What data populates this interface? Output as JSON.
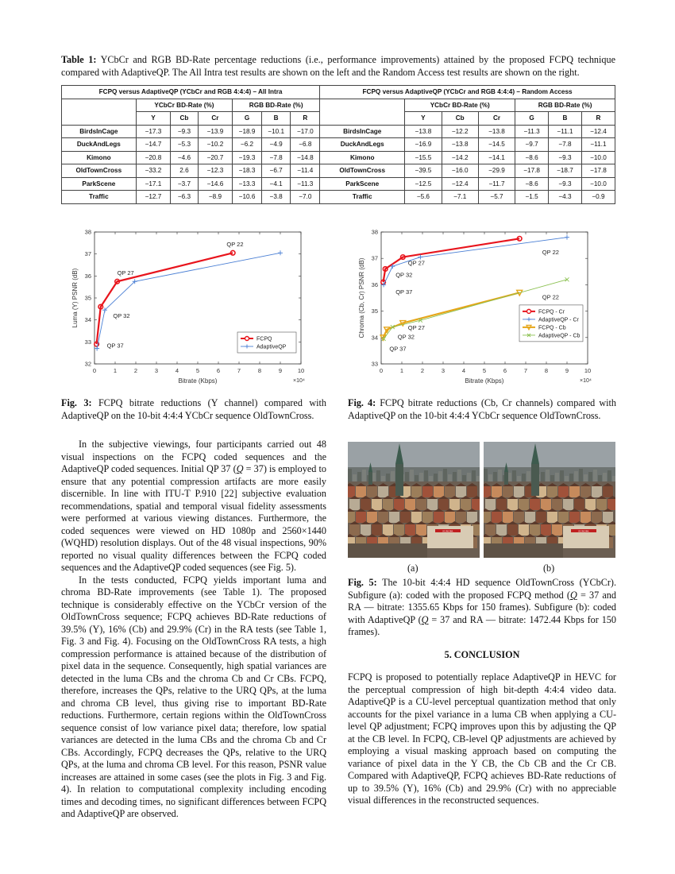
{
  "table": {
    "caption_label": "Table 1:",
    "caption_text": "YCbCr and RGB BD-Rate percentage reductions (i.e., performance improvements) attained by the proposed FCPQ technique compared with AdaptiveQP. The All Intra test results are shown on the left and the Random Access test results are shown on the right.",
    "left_header": "FCPQ versus AdaptiveQP (YCbCr and RGB 4:4:4) – All Intra",
    "right_header": "FCPQ versus AdaptiveQP (YCbCr and RGB 4:4:4) – Random Access",
    "group_ycbcr": "YCbCr BD-Rate (%)",
    "group_rgb": "RGB BD-Rate (%)",
    "columns": [
      "Y",
      "Cb",
      "Cr",
      "G",
      "B",
      "R"
    ],
    "rows": [
      {
        "seq": "BirdsInCage",
        "ai": [
          "−17.3",
          "−9.3",
          "−13.9",
          "−18.9",
          "−10.1",
          "−17.0"
        ],
        "ra": [
          "−13.8",
          "−12.2",
          "−13.8",
          "−11.3",
          "−11.1",
          "−12.4"
        ]
      },
      {
        "seq": "DuckAndLegs",
        "ai": [
          "−14.7",
          "−5.3",
          "−10.2",
          "−6.2",
          "−4.9",
          "−6.8"
        ],
        "ra": [
          "−16.9",
          "−13.8",
          "−14.5",
          "−9.7",
          "−7.8",
          "−11.1"
        ]
      },
      {
        "seq": "Kimono",
        "ai": [
          "−20.8",
          "−4.6",
          "−20.7",
          "−19.3",
          "−7.8",
          "−14.8"
        ],
        "ra": [
          "−15.5",
          "−14.2",
          "−14.1",
          "−8.6",
          "−9.3",
          "−10.0"
        ]
      },
      {
        "seq": "OldTownCross",
        "ai": [
          "−33.2",
          "2.6",
          "−12.3",
          "−18.3",
          "−6.7",
          "−11.4"
        ],
        "ra": [
          "−39.5",
          "−16.0",
          "−29.9",
          "−17.8",
          "−18.7",
          "−17.8"
        ]
      },
      {
        "seq": "ParkScene",
        "ai": [
          "−17.1",
          "−3.7",
          "−14.6",
          "−13.3",
          "−4.1",
          "−11.3"
        ],
        "ra": [
          "−12.5",
          "−12.4",
          "−11.7",
          "−8.6",
          "−9.3",
          "−10.0"
        ]
      },
      {
        "seq": "Traffic",
        "ai": [
          "−12.7",
          "−6.3",
          "−8.9",
          "−10.6",
          "−3.8",
          "−7.0"
        ],
        "ra": [
          "−5.6",
          "−7.1",
          "−5.7",
          "−1.5",
          "−4.3",
          "−0.9"
        ]
      }
    ]
  },
  "chart_data": [
    {
      "type": "line",
      "xlabel": "Bitrate (Kbps)",
      "ylabel": "Luma (Y) PSNR (dB)",
      "x_multiplier": "×10⁴",
      "xlim": [
        0,
        10
      ],
      "ylim": [
        32,
        38
      ],
      "xticks": [
        0,
        1,
        2,
        3,
        4,
        5,
        6,
        7,
        8,
        9,
        10
      ],
      "yticks": [
        32,
        33,
        34,
        35,
        36,
        37,
        38
      ],
      "grid": false,
      "legend_position": "bottom-right",
      "series": [
        {
          "name": "FCPQ",
          "color": "#e8141c",
          "marker": "circle",
          "x": [
            0.1,
            0.3,
            1.1,
            6.7
          ],
          "y": [
            32.9,
            34.6,
            35.75,
            37.05
          ]
        },
        {
          "name": "AdaptiveQP",
          "color": "#4a7fd4",
          "marker": "plus",
          "x": [
            0.12,
            0.5,
            1.95,
            9.0
          ],
          "y": [
            32.7,
            34.45,
            35.75,
            37.05
          ]
        }
      ],
      "annotations": [
        {
          "text": "QP 22",
          "x": 6.4,
          "y": 37.35
        },
        {
          "text": "QP 27",
          "x": 1.1,
          "y": 36.05
        },
        {
          "text": "QP 32",
          "x": 0.9,
          "y": 34.1
        },
        {
          "text": "QP 37",
          "x": 0.6,
          "y": 32.75
        }
      ]
    },
    {
      "type": "line",
      "xlabel": "Bitrate (Kbps)",
      "ylabel": "Chroma (Cb, Cr) PSNR (dB)",
      "x_multiplier": "×10⁴",
      "xlim": [
        0,
        10
      ],
      "ylim": [
        33,
        38
      ],
      "xticks": [
        0,
        1,
        2,
        3,
        4,
        5,
        6,
        7,
        8,
        9,
        10
      ],
      "yticks": [
        33,
        34,
        35,
        36,
        37,
        38
      ],
      "grid": false,
      "legend_position": "center-right",
      "series": [
        {
          "name": "FCPQ - Cr",
          "color": "#e8141c",
          "marker": "circle",
          "x": [
            0.1,
            0.2,
            1.05,
            6.7
          ],
          "y": [
            36.1,
            36.6,
            37.05,
            37.75
          ]
        },
        {
          "name": "AdaptiveQP - Cr",
          "color": "#4a7fd4",
          "marker": "plus",
          "x": [
            0.12,
            0.55,
            1.9,
            9.0
          ],
          "y": [
            36.0,
            36.7,
            37.05,
            37.8
          ]
        },
        {
          "name": "FCPQ - Cb",
          "color": "#e6a619",
          "marker": "triangle-down",
          "x": [
            0.1,
            0.28,
            1.05,
            6.7
          ],
          "y": [
            34.0,
            34.3,
            34.55,
            35.7
          ]
        },
        {
          "name": "AdaptiveQP - Cb",
          "color": "#8cc152",
          "marker": "cross",
          "x": [
            0.12,
            0.55,
            1.9,
            9.0
          ],
          "y": [
            33.95,
            34.4,
            34.65,
            36.2
          ]
        }
      ],
      "annotations": [
        {
          "text": "QP 22",
          "x": 7.8,
          "y": 37.15
        },
        {
          "text": "QP 27",
          "x": 1.3,
          "y": 36.75
        },
        {
          "text": "QP 32",
          "x": 0.7,
          "y": 36.3
        },
        {
          "text": "QP 37",
          "x": 0.7,
          "y": 35.65
        },
        {
          "text": "QP 22",
          "x": 7.8,
          "y": 35.45
        },
        {
          "text": "QP 27",
          "x": 1.3,
          "y": 34.3
        },
        {
          "text": "QP 32",
          "x": 0.8,
          "y": 33.95
        },
        {
          "text": "QP 37",
          "x": 0.4,
          "y": 33.5
        }
      ]
    }
  ],
  "fig3": {
    "label": "Fig. 3:",
    "text": "FCPQ bitrate reductions (Y channel) compared with AdaptiveQP on the 10-bit 4:4:4 YCbCr sequence OldTownCross."
  },
  "fig4": {
    "label": "Fig. 4:",
    "text": "FCPQ bitrate reductions (Cb, Cr channels) compared with AdaptiveQP on the 10-bit 4:4:4 YCbCr sequence OldTownCross."
  },
  "fig5": {
    "label": "Fig. 5:",
    "sub_a": "(a)",
    "sub_b": "(b)",
    "t1": "The 10-bit 4:4:4 HD sequence OldTownCross (YCbCr). Subfigure (a): coded with the proposed FCPQ method (",
    "q": "Q",
    "t2": " = 37 and RA — bitrate: 1355.65 Kbps for 150 frames). Subfigure (b): coded with AdaptiveQP (",
    "t3": " = 37 and RA — bitrate: 1472.44 Kbps for 150 frames)."
  },
  "body": {
    "p1a": "In the subjective viewings, four participants carried out 48 visual inspections on the FCPQ coded sequences and the AdaptiveQP coded sequences. Initial QP 37 (",
    "q": "Q",
    "p1b": " = 37) is employed to ensure that any potential compression artifacts are more easily discernible. In line with ITU-T P.910 [22] subjective evaluation recommendations, spatial and temporal visual fidelity assessments were performed at various viewing distances. Furthermore, the coded sequences were viewed on HD 1080p and 2560×1440 (WQHD) resolution displays. Out of the 48 visual inspections, 90% reported no visual quality differences between the FCPQ coded sequences and the AdaptiveQP coded sequences (see Fig. 5).",
    "p2": "In the tests conducted, FCPQ yields important luma and chroma BD-Rate improvements (see Table 1). The proposed technique is considerably effective on the YCbCr version of the OldTownCross sequence; FCPQ achieves BD-Rate reductions of 39.5% (Y), 16% (Cb) and 29.9% (Cr) in the RA tests (see Table 1, Fig. 3 and Fig. 4). Focusing on the OldTownCross RA tests, a high compression performance is attained because of the distribution of pixel data in the sequence. Consequently, high spatial variances are detected in the luma CBs and the chroma Cb and Cr CBs. FCPQ, therefore, increases the QPs, relative to the URQ QPs, at the luma and chroma CB level, thus giving rise to important BD-Rate reductions. Furthermore, certain regions within the OldTownCross sequence consist of low variance pixel data; therefore, low spatial variances are detected in the luma CBs and the chroma Cb and Cr CBs. Accordingly, FCPQ decreases the QPs, relative to the URQ QPs, at the luma and chroma CB level. For this reason, PSNR value increases are attained in some cases (see the plots in Fig. 3 and Fig. 4). In relation to computational complexity including encoding times and decoding times, no significant differences between FCPQ and AdaptiveQP are observed."
  },
  "conclusion": {
    "heading": "5. CONCLUSION",
    "text": "FCPQ is proposed to potentially replace AdaptiveQP in HEVC for the perceptual compression of high bit-depth 4:4:4 video data. AdaptiveQP is a CU-level perceptual quantization method that only accounts for the pixel variance in a luma CB when applying a CU-level QP adjustment; FCPQ improves upon this by adjusting the QP at the CB level. In FCPQ, CB-level QP adjustments are achieved by employing a visual masking approach based on computing the variance of pixel data in the Y CB, the Cb CB and the Cr CB. Compared with AdaptiveQP, FCPQ achieves BD-Rate reductions of up to 39.5% (Y), 16% (Cb) and 29.9% (Cr) with no appreciable visual differences in the reconstructed sequences."
  },
  "photo": {
    "sign_text": "EUROPA"
  },
  "colors": {
    "fcpq": "#e8141c",
    "adaptive": "#4a7fd4",
    "fcpq_cb": "#e6a619",
    "adaptive_cb": "#8cc152"
  }
}
